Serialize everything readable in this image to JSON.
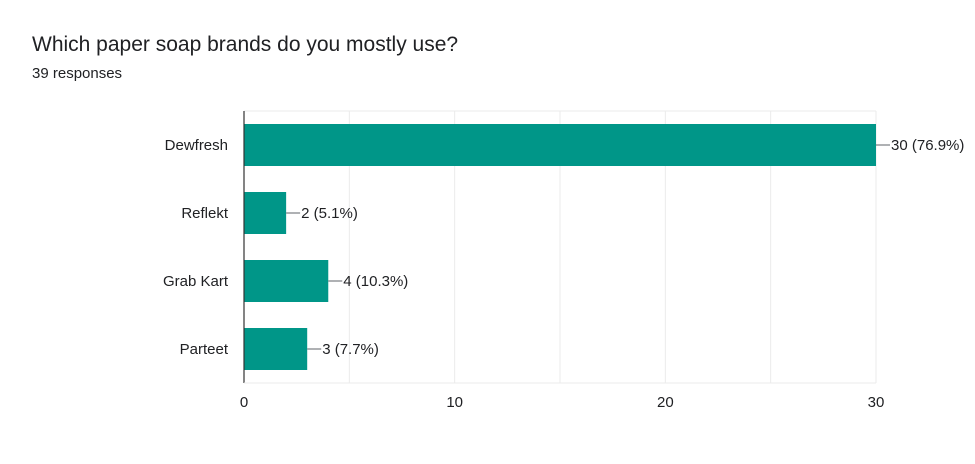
{
  "card": {
    "title": "Which paper soap brands do you mostly use?",
    "subtitle": "39 responses"
  },
  "chart_data": {
    "type": "bar",
    "orientation": "horizontal",
    "categories": [
      "Dewfresh",
      "Reflekt",
      "Grab Kart",
      "Parteet"
    ],
    "values": [
      30,
      2,
      4,
      3
    ],
    "data_labels": [
      "30 (76.9%)",
      "2 (5.1%)",
      "4 (10.3%)",
      "3 (7.7%)"
    ],
    "xlim": [
      0,
      30
    ],
    "x_ticks": [
      0,
      10,
      20,
      30
    ],
    "grid": true,
    "bar_color": "#009688",
    "gridline_color": "#ebebeb",
    "axis_color": "#333333"
  }
}
